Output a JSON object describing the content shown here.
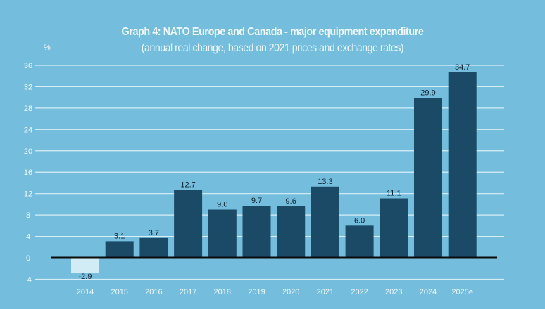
{
  "chart_data": {
    "type": "bar",
    "title": "Graph 4: NATO Europe and Canada - major equipment expenditure",
    "subtitle": "(annual real change, based on 2021 prices and exchange rates)",
    "ylabel": "%",
    "xlabel": "",
    "categories": [
      "2014",
      "2015",
      "2016",
      "2017",
      "2018",
      "2019",
      "2020",
      "2021",
      "2022",
      "2023",
      "2024",
      "2025e"
    ],
    "values": [
      -2.9,
      3.1,
      3.7,
      12.7,
      9.0,
      9.7,
      9.6,
      13.3,
      6.0,
      11.1,
      29.9,
      34.7
    ],
    "data_labels": [
      "-2.9",
      "3.1",
      "3.7",
      "12.7",
      "9.0",
      "9.7",
      "9.6",
      "13.3",
      "6.0",
      "11.1",
      "29.9",
      "34.7"
    ],
    "ylim": [
      -4,
      36
    ],
    "yticks": [
      -4,
      0,
      4,
      8,
      12,
      16,
      20,
      24,
      28,
      32,
      36
    ],
    "grid": true,
    "colors": {
      "background": "#74bddc",
      "positive_bar": "#1b4a66",
      "negative_bar": "#d2ecf5",
      "grid": "#d8eef7",
      "axis": "#0b0b0b",
      "text": "#eef8fc"
    }
  }
}
